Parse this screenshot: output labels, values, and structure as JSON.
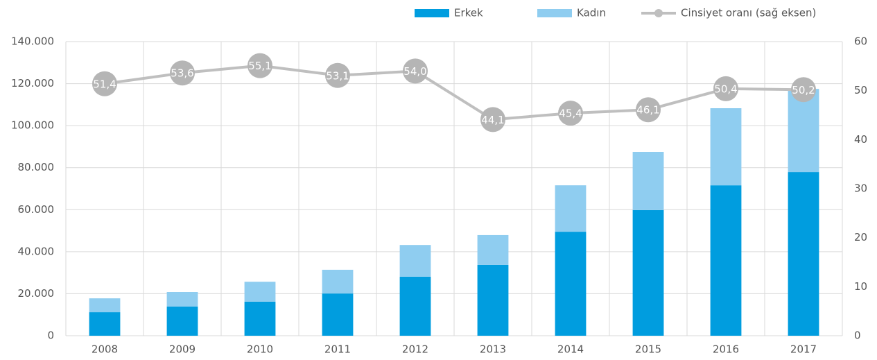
{
  "chart_data": {
    "type": "bar",
    "categories": [
      "2008",
      "2009",
      "2010",
      "2011",
      "2012",
      "2013",
      "2014",
      "2015",
      "2016",
      "2017"
    ],
    "series": [
      {
        "name": "Erkek",
        "color": "#009ddf",
        "values": [
          11200,
          13900,
          16200,
          20100,
          28100,
          33700,
          49500,
          59800,
          71600,
          77900
        ]
      },
      {
        "name": "Kadın",
        "color": "#8fcdf0",
        "values": [
          6600,
          6900,
          9500,
          11300,
          15100,
          14200,
          22100,
          27700,
          36700,
          39600
        ]
      },
      {
        "name": "Cinsiyet oranı (sağ eksen)",
        "color": "#bfbfbf",
        "type": "line",
        "axis": "y2",
        "values": [
          51.4,
          53.6,
          55.1,
          53.1,
          54.0,
          44.1,
          45.4,
          46.1,
          50.4,
          50.2
        ],
        "value_labels": [
          "51,4",
          "53,6",
          "55,1",
          "53,1",
          "54,0",
          "44,1",
          "45,4",
          "46,1",
          "50,4",
          "50,2"
        ]
      }
    ],
    "ylim": [
      0,
      140000
    ],
    "yticks": [
      0,
      {
        "value": 20000,
        "label": "20.000"
      },
      {
        "value": 40000,
        "label": "40.000"
      },
      {
        "value": 60000,
        "label": "60.000"
      },
      {
        "value": 80000,
        "label": "80.000"
      },
      {
        "value": 100000,
        "label": "100.000"
      },
      {
        "value": 120000,
        "label": "120.000"
      },
      {
        "value": 140000,
        "label": "140.000"
      }
    ],
    "y2lim": [
      0,
      60
    ],
    "y2ticks": [
      0,
      10,
      20,
      30,
      40,
      50,
      60
    ],
    "stacked": true,
    "grid": true
  }
}
